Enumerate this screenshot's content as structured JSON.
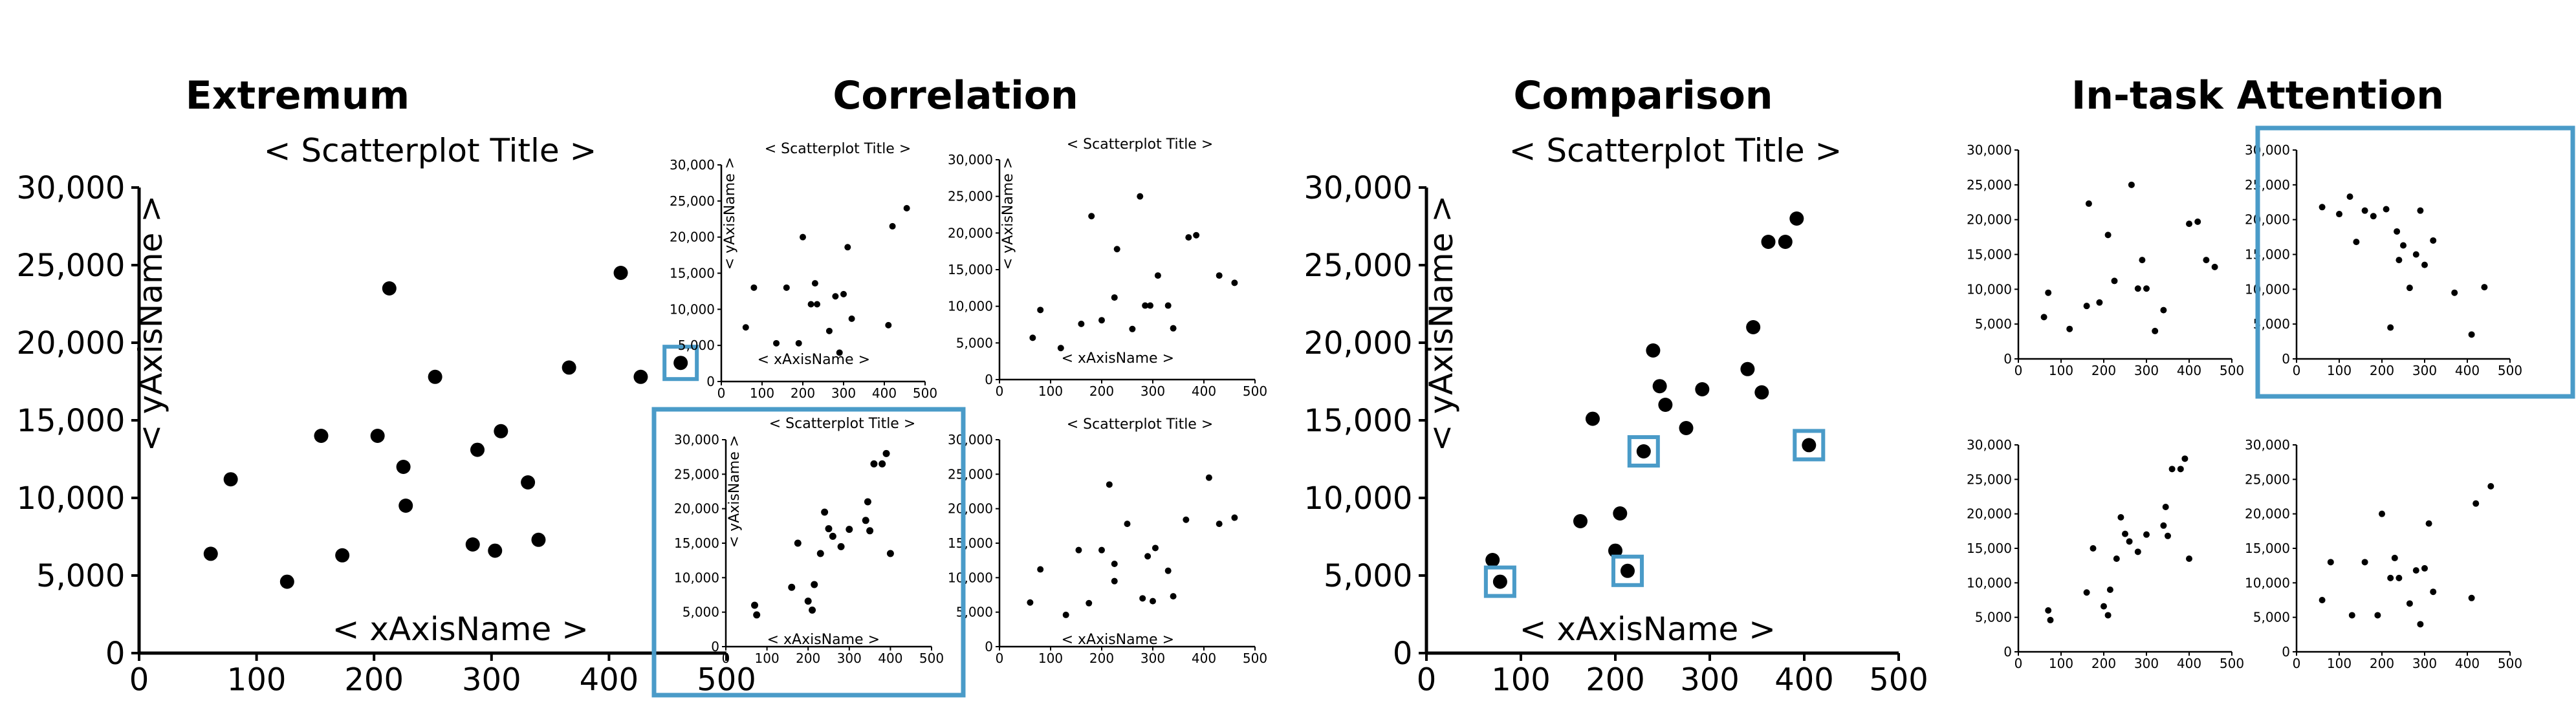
{
  "sections": [
    {
      "title": "Extremum"
    },
    {
      "title": "Correlation"
    },
    {
      "title": "Comparison"
    },
    {
      "title": "In-task Attention"
    }
  ],
  "colors": {
    "highlight": "#4a9bc8",
    "points": "#000000",
    "axis": "#000000"
  },
  "chart_data": [
    {
      "id": "extremum",
      "type": "scatter",
      "title": "< Scatterplot Title >",
      "xlabel": "< xAxisName >",
      "ylabel": "< yAxisName >",
      "xlim": [
        0,
        500
      ],
      "ylim": [
        0,
        30000
      ],
      "xticks": [
        0,
        100,
        200,
        300,
        400,
        500
      ],
      "yticks": [
        0,
        5000,
        10000,
        15000,
        20000,
        25000,
        30000
      ],
      "xtick_labels": [
        "0",
        "100",
        "200",
        "300",
        "400",
        "500"
      ],
      "ytick_labels": [
        "0",
        "5,000",
        "10,000",
        "15,000",
        "20,000",
        "25,000",
        "30,000"
      ],
      "x": [
        61,
        78,
        126,
        155,
        173,
        203,
        213,
        225,
        227,
        252,
        284,
        288,
        303,
        308,
        331,
        340,
        366,
        410,
        427,
        461
      ],
      "y": [
        6400,
        11200,
        4600,
        14000,
        6300,
        14000,
        23500,
        12000,
        9500,
        17800,
        7000,
        13100,
        6600,
        14300,
        11000,
        7300,
        18400,
        24500,
        17800,
        18700
      ],
      "highlighted_points": [
        19
      ]
    },
    {
      "id": "correlation-1",
      "type": "scatter",
      "title": "< Scatterplot Title >",
      "xlabel": "< xAxisName >",
      "ylabel": "< yAxisName >",
      "xlim": [
        0,
        500
      ],
      "ylim": [
        0,
        30000
      ],
      "xticks": [
        0,
        100,
        200,
        300,
        400,
        500
      ],
      "yticks": [
        0,
        5000,
        10000,
        15000,
        20000,
        25000,
        30000
      ],
      "xtick_labels": [
        "0",
        "100",
        "200",
        "300",
        "400",
        "500"
      ],
      "ytick_labels": [
        "0",
        "5,000",
        "10,000",
        "15,000",
        "20,000",
        "25,000",
        "30,000"
      ],
      "x": [
        60,
        80,
        135,
        160,
        190,
        200,
        220,
        230,
        235,
        265,
        280,
        290,
        300,
        310,
        320,
        410,
        420,
        455
      ],
      "y": [
        7500,
        13000,
        5300,
        13000,
        5300,
        20000,
        10700,
        13600,
        10700,
        7000,
        11800,
        4000,
        12100,
        18600,
        8700,
        7800,
        21500,
        24000
      ],
      "highlighted_points": []
    },
    {
      "id": "correlation-2",
      "type": "scatter",
      "title": "< Scatterplot Title >",
      "xlabel": "< xAxisName >",
      "ylabel": "< yAxisName >",
      "xlim": [
        0,
        500
      ],
      "ylim": [
        0,
        30000
      ],
      "xticks": [
        0,
        100,
        200,
        300,
        400,
        500
      ],
      "yticks": [
        0,
        5000,
        10000,
        15000,
        20000,
        25000,
        30000
      ],
      "xtick_labels": [
        "0",
        "100",
        "200",
        "300",
        "400",
        "500"
      ],
      "ytick_labels": [
        "0",
        "5,000",
        "10,000",
        "15,000",
        "20,000",
        "25,000",
        "30,000"
      ],
      "x": [
        65,
        80,
        120,
        160,
        180,
        200,
        225,
        230,
        260,
        275,
        285,
        295,
        310,
        330,
        340,
        370,
        385,
        430,
        460
      ],
      "y": [
        5700,
        9500,
        4300,
        7600,
        22300,
        8100,
        11200,
        17800,
        6900,
        25000,
        10100,
        10100,
        14200,
        10100,
        7000,
        19400,
        19700,
        14200,
        13200
      ],
      "highlighted_points": []
    },
    {
      "id": "correlation-3",
      "type": "scatter",
      "title": "< Scatterplot Title >",
      "xlabel": "< xAxisName >",
      "ylabel": "< yAxisName >",
      "xlim": [
        0,
        500
      ],
      "ylim": [
        0,
        30000
      ],
      "xticks": [
        0,
        100,
        200,
        300,
        400,
        500
      ],
      "yticks": [
        0,
        5000,
        10000,
        15000,
        20000,
        25000,
        30000
      ],
      "xtick_labels": [
        "0",
        "100",
        "200",
        "300",
        "400",
        "500"
      ],
      "ytick_labels": [
        "0",
        "5,000",
        "10,000",
        "15,000",
        "20,000",
        "25,000",
        "30,000"
      ],
      "x": [
        70,
        75,
        160,
        175,
        200,
        210,
        215,
        230,
        240,
        250,
        260,
        280,
        300,
        340,
        345,
        350,
        360,
        380,
        390,
        400
      ],
      "y": [
        6000,
        4600,
        8600,
        15000,
        6600,
        5300,
        9000,
        13500,
        19500,
        17100,
        16000,
        14500,
        17000,
        18300,
        21000,
        16800,
        26500,
        26500,
        28000,
        13500
      ],
      "highlighted_points": []
    },
    {
      "id": "correlation-4",
      "type": "scatter",
      "title": "< Scatterplot Title >",
      "xlabel": "< xAxisName >",
      "ylabel": "< yAxisName >",
      "xlim": [
        0,
        500
      ],
      "ylim": [
        0,
        30000
      ],
      "xticks": [
        0,
        100,
        200,
        300,
        400,
        500
      ],
      "yticks": [
        0,
        5000,
        10000,
        15000,
        20000,
        25000,
        30000
      ],
      "xtick_labels": [
        "0",
        "100",
        "200",
        "300",
        "400",
        "500"
      ],
      "ytick_labels": [
        "0",
        "5,000",
        "10,000",
        "15,000",
        "20,000",
        "25,000",
        "30,000"
      ],
      "x": [
        60,
        80,
        130,
        155,
        175,
        200,
        215,
        225,
        225,
        250,
        280,
        290,
        300,
        305,
        330,
        340,
        365,
        410,
        430,
        460
      ],
      "y": [
        6400,
        11200,
        4600,
        14000,
        6300,
        14000,
        23500,
        12000,
        9500,
        17800,
        7000,
        13100,
        6600,
        14300,
        11000,
        7300,
        18400,
        24500,
        17800,
        18700
      ],
      "highlighted_points": []
    },
    {
      "id": "comparison",
      "type": "scatter",
      "title": "< Scatterplot Title >",
      "xlabel": "< xAxisName >",
      "ylabel": "< yAxisName >",
      "xlim": [
        0,
        500
      ],
      "ylim": [
        0,
        30000
      ],
      "xticks": [
        0,
        100,
        200,
        300,
        400,
        500
      ],
      "yticks": [
        0,
        5000,
        10000,
        15000,
        20000,
        25000,
        30000
      ],
      "xtick_labels": [
        "0",
        "100",
        "200",
        "300",
        "400",
        "500"
      ],
      "ytick_labels": [
        "0",
        "5,000",
        "10,000",
        "15,000",
        "20,000",
        "25,000",
        "30,000"
      ],
      "x": [
        70,
        78,
        163,
        176,
        200,
        205,
        213,
        230,
        240,
        247,
        253,
        275,
        292,
        340,
        346,
        355,
        362,
        380,
        392,
        405
      ],
      "y": [
        6000,
        4600,
        8500,
        15100,
        6600,
        9000,
        5300,
        13000,
        19500,
        17200,
        16000,
        14500,
        17000,
        18300,
        21000,
        16800,
        26500,
        26500,
        28000,
        13400
      ],
      "highlighted_points": [
        1,
        6,
        7,
        19
      ]
    },
    {
      "id": "attention-1",
      "type": "scatter",
      "title": "",
      "xlabel": "",
      "ylabel": "",
      "xlim": [
        0,
        500
      ],
      "ylim": [
        0,
        30000
      ],
      "xticks": [
        0,
        100,
        200,
        300,
        400,
        500
      ],
      "yticks": [
        0,
        5000,
        10000,
        15000,
        20000,
        25000,
        30000
      ],
      "xtick_labels": [
        "0",
        "100",
        "200",
        "300",
        "400",
        "500"
      ],
      "ytick_labels": [
        "0",
        "5,000",
        "10,000",
        "15,000",
        "20,000",
        "25,000",
        "30,000"
      ],
      "x": [
        60,
        70,
        120,
        160,
        165,
        190,
        210,
        225,
        265,
        280,
        290,
        300,
        320,
        340,
        400,
        420,
        440,
        460
      ],
      "y": [
        6000,
        9500,
        4300,
        7600,
        22300,
        8100,
        17800,
        11200,
        25000,
        10100,
        14200,
        10100,
        4000,
        7000,
        19400,
        19700,
        14200,
        13200
      ],
      "highlighted_points": []
    },
    {
      "id": "attention-2",
      "type": "scatter",
      "title": "",
      "xlabel": "",
      "ylabel": "",
      "xlim": [
        0,
        500
      ],
      "ylim": [
        0,
        30000
      ],
      "xticks": [
        0,
        100,
        200,
        300,
        400,
        500
      ],
      "yticks": [
        0,
        5000,
        10000,
        15000,
        20000,
        25000,
        30000
      ],
      "xtick_labels": [
        "0",
        "100",
        "200",
        "300",
        "400",
        "500"
      ],
      "ytick_labels": [
        "0",
        "5,000",
        "10,000",
        "15,000",
        "20,000",
        "25,000",
        "30,000"
      ],
      "x": [
        60,
        100,
        125,
        140,
        160,
        180,
        210,
        220,
        235,
        240,
        250,
        265,
        280,
        290,
        300,
        320,
        370,
        410,
        440
      ],
      "y": [
        21800,
        20800,
        23300,
        16800,
        21300,
        20500,
        21500,
        4500,
        18300,
        14200,
        16300,
        10200,
        15000,
        21300,
        13500,
        17000,
        9500,
        3500,
        10300
      ],
      "highlighted_points": []
    },
    {
      "id": "attention-3",
      "type": "scatter",
      "title": "",
      "xlabel": "",
      "ylabel": "",
      "xlim": [
        0,
        500
      ],
      "ylim": [
        0,
        30000
      ],
      "xticks": [
        0,
        100,
        200,
        300,
        400,
        500
      ],
      "yticks": [
        0,
        5000,
        10000,
        15000,
        20000,
        25000,
        30000
      ],
      "xtick_labels": [
        "0",
        "100",
        "200",
        "300",
        "400",
        "500"
      ],
      "ytick_labels": [
        "0",
        "5,000",
        "10,000",
        "15,000",
        "20,000",
        "25,000",
        "30,000"
      ],
      "x": [
        70,
        75,
        160,
        175,
        200,
        210,
        215,
        230,
        240,
        250,
        260,
        280,
        300,
        340,
        345,
        350,
        360,
        380,
        390,
        400
      ],
      "y": [
        6000,
        4600,
        8600,
        15000,
        6600,
        5300,
        9000,
        13500,
        19500,
        17100,
        16000,
        14500,
        17000,
        18300,
        21000,
        16800,
        26500,
        26500,
        28000,
        13500
      ],
      "highlighted_points": []
    },
    {
      "id": "attention-4",
      "type": "scatter",
      "title": "",
      "xlabel": "",
      "ylabel": "",
      "xlim": [
        0,
        500
      ],
      "ylim": [
        0,
        30000
      ],
      "xticks": [
        0,
        100,
        200,
        300,
        400,
        500
      ],
      "yticks": [
        0,
        5000,
        10000,
        15000,
        20000,
        25000,
        30000
      ],
      "xtick_labels": [
        "0",
        "100",
        "200",
        "300",
        "400",
        "500"
      ],
      "ytick_labels": [
        "0",
        "5,000",
        "10,000",
        "15,000",
        "20,000",
        "25,000",
        "30,000"
      ],
      "x": [
        60,
        80,
        130,
        160,
        190,
        200,
        220,
        230,
        240,
        265,
        280,
        290,
        300,
        310,
        320,
        410,
        420,
        455
      ],
      "y": [
        7500,
        13000,
        5300,
        13000,
        5300,
        20000,
        10700,
        13600,
        10700,
        7000,
        11800,
        4000,
        12100,
        18600,
        8700,
        7800,
        21500,
        24000
      ],
      "highlighted_points": []
    }
  ]
}
